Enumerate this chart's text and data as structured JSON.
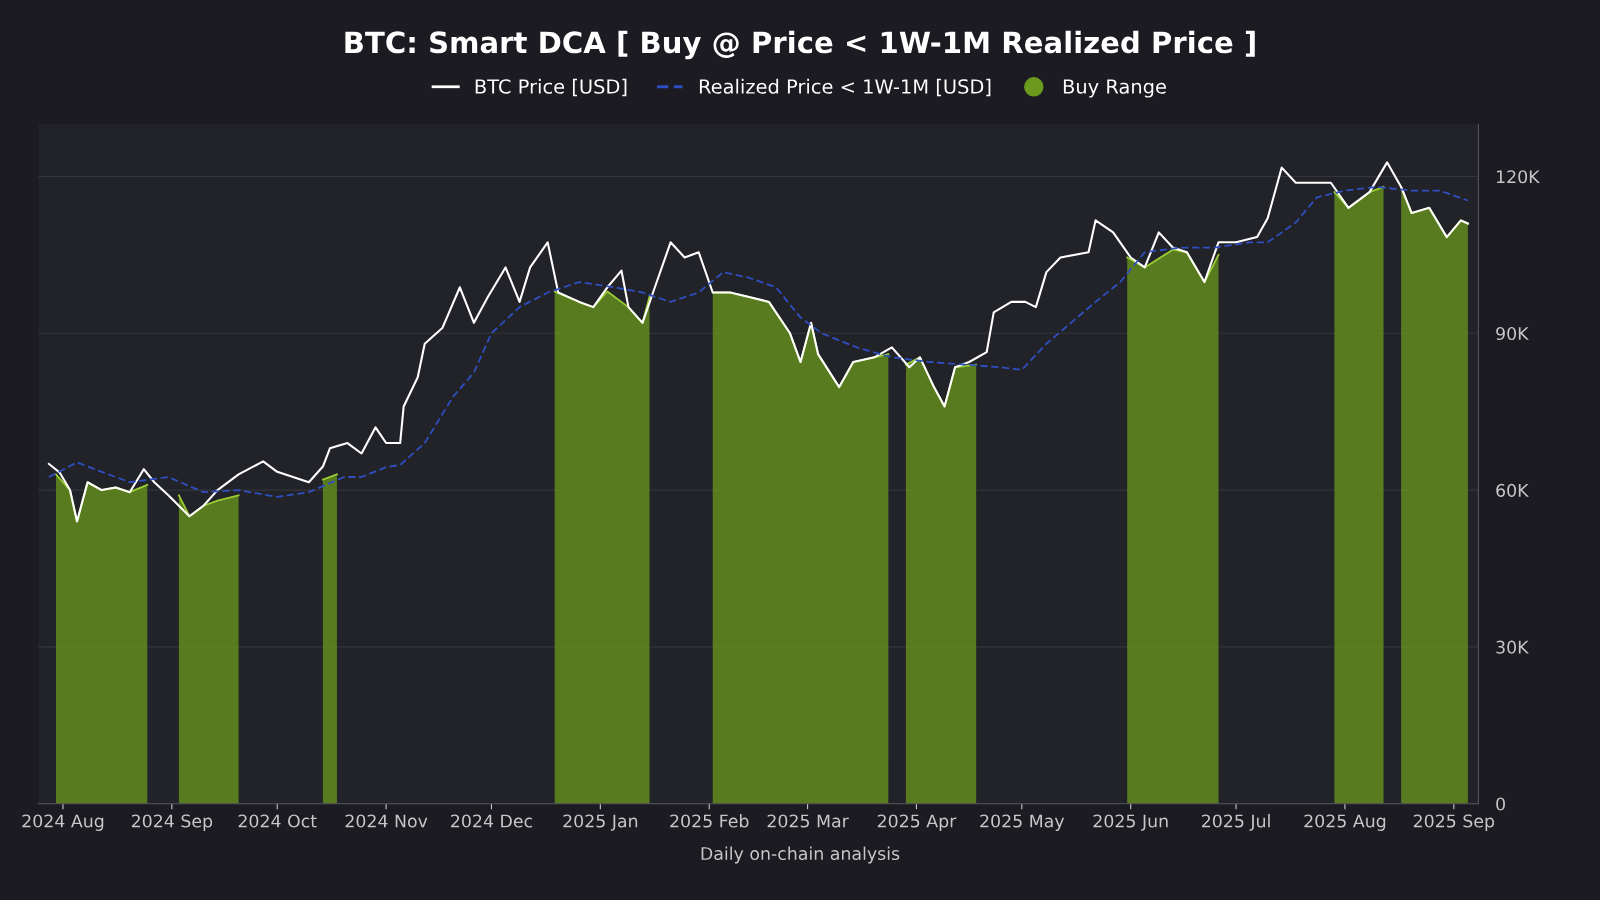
{
  "chart_data": {
    "type": "line",
    "title": "BTC: Smart DCA [ Buy @ Price < 1W-1M Realized Price ]",
    "annotations": [
      "Daily on-chain analysis"
    ],
    "xlim": [
      "2024-07-25",
      "2025-09-08"
    ],
    "xticks": [
      {
        "value": "2024-08-01",
        "label": "2024 Aug"
      },
      {
        "value": "2024-09-01",
        "label": "2024 Sep"
      },
      {
        "value": "2024-10-01",
        "label": "2024 Oct"
      },
      {
        "value": "2024-11-01",
        "label": "2024 Nov"
      },
      {
        "value": "2024-12-01",
        "label": "2024 Dec"
      },
      {
        "value": "2025-01-01",
        "label": "2025 Jan"
      },
      {
        "value": "2025-02-01",
        "label": "2025 Feb"
      },
      {
        "value": "2025-03-01",
        "label": "2025 Mar"
      },
      {
        "value": "2025-04-01",
        "label": "2025 Apr"
      },
      {
        "value": "2025-05-01",
        "label": "2025 May"
      },
      {
        "value": "2025-06-01",
        "label": "2025 Jun"
      },
      {
        "value": "2025-07-01",
        "label": "2025 Jul"
      },
      {
        "value": "2025-08-01",
        "label": "2025 Aug"
      },
      {
        "value": "2025-09-01",
        "label": "2025 Sep"
      }
    ],
    "ylim": [
      0,
      130000
    ],
    "yticks": [
      0,
      {
        "value": 30000,
        "label": "30K"
      },
      {
        "value": 60000,
        "label": "60K"
      },
      {
        "value": 90000,
        "label": "90K"
      },
      {
        "value": 120000,
        "label": "120K"
      }
    ],
    "grid": "y",
    "legend": "top",
    "series": [
      {
        "name": "Buy Range",
        "type": "area",
        "color": "#6b9a1e",
        "x": [
          "2024-07-30",
          "2024-08-03",
          "2024-08-05",
          "2024-08-08",
          "2024-08-12",
          "2024-08-16",
          "2024-08-20",
          "2024-08-25",
          "2024-08-27",
          "2024-09-03",
          "2024-09-06",
          "2024-09-10",
          "2024-09-14",
          "2024-09-20",
          "2024-09-22",
          "2024-10-14",
          "2024-10-18",
          "2024-10-20",
          "2024-12-19",
          "2024-12-26",
          "2024-12-30",
          "2025-01-03",
          "2025-01-09",
          "2025-01-13",
          "2025-01-15",
          "2025-01-17",
          "2025-02-02",
          "2025-02-07",
          "2025-02-12",
          "2025-02-18",
          "2025-02-24",
          "2025-02-27",
          "2025-03-02",
          "2025-03-04",
          "2025-03-10",
          "2025-03-14",
          "2025-03-20",
          "2025-03-24",
          "2025-03-26",
          "2025-03-29",
          "2025-04-02",
          "2025-04-06",
          "2025-04-09",
          "2025-04-12",
          "2025-04-18",
          "2025-04-21",
          "2025-05-31",
          "2025-06-05",
          "2025-06-13",
          "2025-06-17",
          "2025-06-22",
          "2025-06-26",
          "2025-06-28",
          "2025-07-29",
          "2025-08-02",
          "2025-08-08",
          "2025-08-12",
          "2025-08-14",
          "2025-08-17",
          "2025-08-20",
          "2025-08-25",
          "2025-08-30",
          "2025-09-03",
          "2025-09-05"
        ],
        "values": [
          63000,
          60000,
          54000,
          61500,
          60000,
          60500,
          59600,
          61000,
          null,
          59000,
          55000,
          57000,
          58000,
          59000,
          null,
          62000,
          63000,
          null,
          98000,
          96000,
          95000,
          98000,
          95000,
          92000,
          97000,
          null,
          97800,
          97800,
          97000,
          96000,
          90000,
          84500,
          92000,
          86000,
          79700,
          84500,
          85400,
          86000,
          null,
          84000,
          85400,
          79700,
          76000,
          83500,
          84000,
          null,
          104500,
          102600,
          106000,
          105500,
          99800,
          105000,
          null,
          117000,
          114000,
          117000,
          118000,
          null,
          118000,
          113000,
          114000,
          108400,
          111600,
          111000
        ]
      },
      {
        "name": "BTC Price [USD]",
        "type": "line",
        "color": "#ffffff",
        "line_style": "solid",
        "x": [
          "2024-07-28",
          "2024-07-31",
          "2024-08-03",
          "2024-08-05",
          "2024-08-08",
          "2024-08-12",
          "2024-08-16",
          "2024-08-20",
          "2024-08-24",
          "2024-08-27",
          "2024-08-31",
          "2024-09-06",
          "2024-09-10",
          "2024-09-14",
          "2024-09-20",
          "2024-09-27",
          "2024-10-01",
          "2024-10-10",
          "2024-10-14",
          "2024-10-16",
          "2024-10-21",
          "2024-10-25",
          "2024-10-29",
          "2024-11-01",
          "2024-11-05",
          "2024-11-06",
          "2024-11-10",
          "2024-11-12",
          "2024-11-17",
          "2024-11-22",
          "2024-11-26",
          "2024-11-30",
          "2024-12-05",
          "2024-12-09",
          "2024-12-12",
          "2024-12-17",
          "2024-12-20",
          "2024-12-26",
          "2024-12-30",
          "2025-01-03",
          "2025-01-07",
          "2025-01-09",
          "2025-01-13",
          "2025-01-16",
          "2025-01-21",
          "2025-01-25",
          "2025-01-29",
          "2025-02-02",
          "2025-02-07",
          "2025-02-12",
          "2025-02-18",
          "2025-02-24",
          "2025-02-27",
          "2025-03-02",
          "2025-03-04",
          "2025-03-10",
          "2025-03-14",
          "2025-03-20",
          "2025-03-25",
          "2025-03-30",
          "2025-04-02",
          "2025-04-06",
          "2025-04-09",
          "2025-04-12",
          "2025-04-16",
          "2025-04-21",
          "2025-04-23",
          "2025-04-28",
          "2025-05-02",
          "2025-05-05",
          "2025-05-08",
          "2025-05-12",
          "2025-05-20",
          "2025-05-22",
          "2025-05-27",
          "2025-06-01",
          "2025-06-05",
          "2025-06-09",
          "2025-06-13",
          "2025-06-17",
          "2025-06-22",
          "2025-06-26",
          "2025-07-01",
          "2025-07-07",
          "2025-07-10",
          "2025-07-14",
          "2025-07-18",
          "2025-07-24",
          "2025-07-28",
          "2025-08-02",
          "2025-08-08",
          "2025-08-13",
          "2025-08-17",
          "2025-08-20",
          "2025-08-25",
          "2025-08-30",
          "2025-09-03",
          "2025-09-05"
        ],
        "values": [
          65000,
          63400,
          60000,
          54000,
          61500,
          60000,
          60500,
          59600,
          64000,
          61500,
          59000,
          55000,
          57000,
          60000,
          63000,
          65500,
          63500,
          61500,
          64500,
          68000,
          69000,
          67000,
          72000,
          69000,
          69000,
          76000,
          81600,
          88000,
          91000,
          98800,
          92000,
          97000,
          102600,
          96000,
          102600,
          107400,
          97800,
          96000,
          95000,
          98800,
          102000,
          95000,
          92000,
          97800,
          107400,
          104500,
          105500,
          97800,
          97800,
          97000,
          96000,
          90000,
          84500,
          92000,
          86000,
          79700,
          84500,
          85400,
          87300,
          83500,
          85400,
          79700,
          76000,
          83500,
          84500,
          86400,
          94000,
          96000,
          96000,
          95000,
          101700,
          104500,
          105500,
          111600,
          109300,
          104500,
          102600,
          109300,
          106400,
          105500,
          99800,
          107400,
          107400,
          108400,
          112000,
          121700,
          118800,
          118800,
          118800,
          114000,
          117000,
          122700,
          118000,
          113000,
          114000,
          108400,
          111600,
          111000
        ]
      },
      {
        "name": "Realized Price < 1W-1M [USD]",
        "type": "line",
        "color": "#2f4fc0",
        "line_style": "dashed",
        "x": [
          "2024-07-28",
          "2024-08-05",
          "2024-08-12",
          "2024-08-20",
          "2024-08-31",
          "2024-09-10",
          "2024-09-20",
          "2024-10-01",
          "2024-10-10",
          "2024-10-20",
          "2024-10-25",
          "2024-11-01",
          "2024-11-05",
          "2024-11-12",
          "2024-11-20",
          "2024-11-26",
          "2024-12-01",
          "2024-12-09",
          "2024-12-17",
          "2024-12-26",
          "2025-01-05",
          "2025-01-13",
          "2025-01-21",
          "2025-01-29",
          "2025-02-05",
          "2025-02-12",
          "2025-02-20",
          "2025-02-27",
          "2025-03-05",
          "2025-03-15",
          "2025-03-25",
          "2025-04-05",
          "2025-04-15",
          "2025-04-25",
          "2025-05-01",
          "2025-05-08",
          "2025-05-15",
          "2025-05-22",
          "2025-05-29",
          "2025-06-05",
          "2025-06-15",
          "2025-06-25",
          "2025-07-05",
          "2025-07-10",
          "2025-07-18",
          "2025-07-24",
          "2025-08-01",
          "2025-08-10",
          "2025-08-20",
          "2025-08-28",
          "2025-09-05"
        ],
        "values": [
          62500,
          65300,
          63500,
          61500,
          62500,
          59600,
          60000,
          58700,
          59600,
          62500,
          62500,
          64400,
          64800,
          69000,
          77800,
          82500,
          90000,
          95000,
          97800,
          99800,
          98800,
          97800,
          96000,
          97800,
          101700,
          100700,
          98800,
          93000,
          90000,
          87300,
          85400,
          84500,
          84000,
          83500,
          83000,
          88000,
          92000,
          96000,
          99800,
          105500,
          106400,
          106400,
          107400,
          107400,
          111200,
          116000,
          117300,
          118000,
          117300,
          117300,
          115400
        ]
      }
    ]
  }
}
